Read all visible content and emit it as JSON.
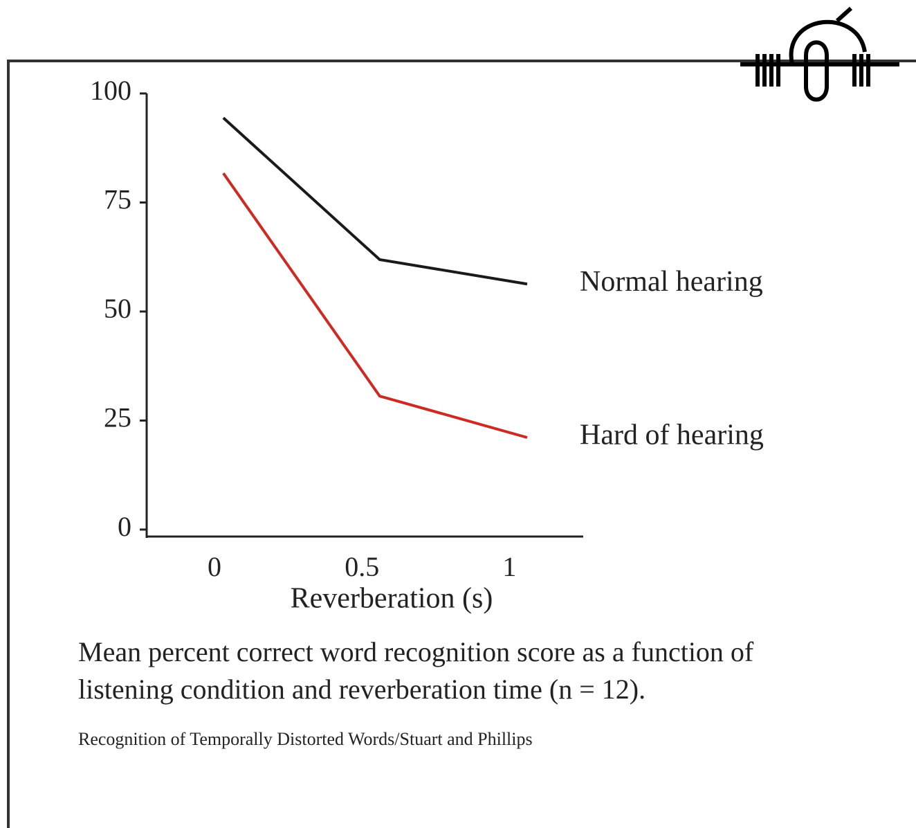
{
  "chart_data": {
    "type": "line",
    "x": [
      0.03,
      0.56,
      1.06
    ],
    "series": [
      {
        "name": "Normal hearing",
        "color": "#1a1a1a",
        "values": [
          94.4,
          61.9,
          56.3
        ]
      },
      {
        "name": "Hard of hearing",
        "color": "#cc2a22",
        "values": [
          81.7,
          30.6,
          21.1
        ]
      }
    ],
    "xlabel": "Reverberation (s)",
    "xlim": [
      -0.23,
      1.25
    ],
    "xticks": [
      0,
      0.5,
      1
    ],
    "ylim": [
      -1.6,
      100
    ],
    "yticks": [
      0,
      25,
      50,
      75,
      100
    ],
    "caption": [
      "Mean percent correct word recognition score as a function of",
      "listening condition and reverberation time (n = 12)."
    ],
    "source": "Recognition of Temporally Distorted Words/Stuart and Phillips"
  }
}
